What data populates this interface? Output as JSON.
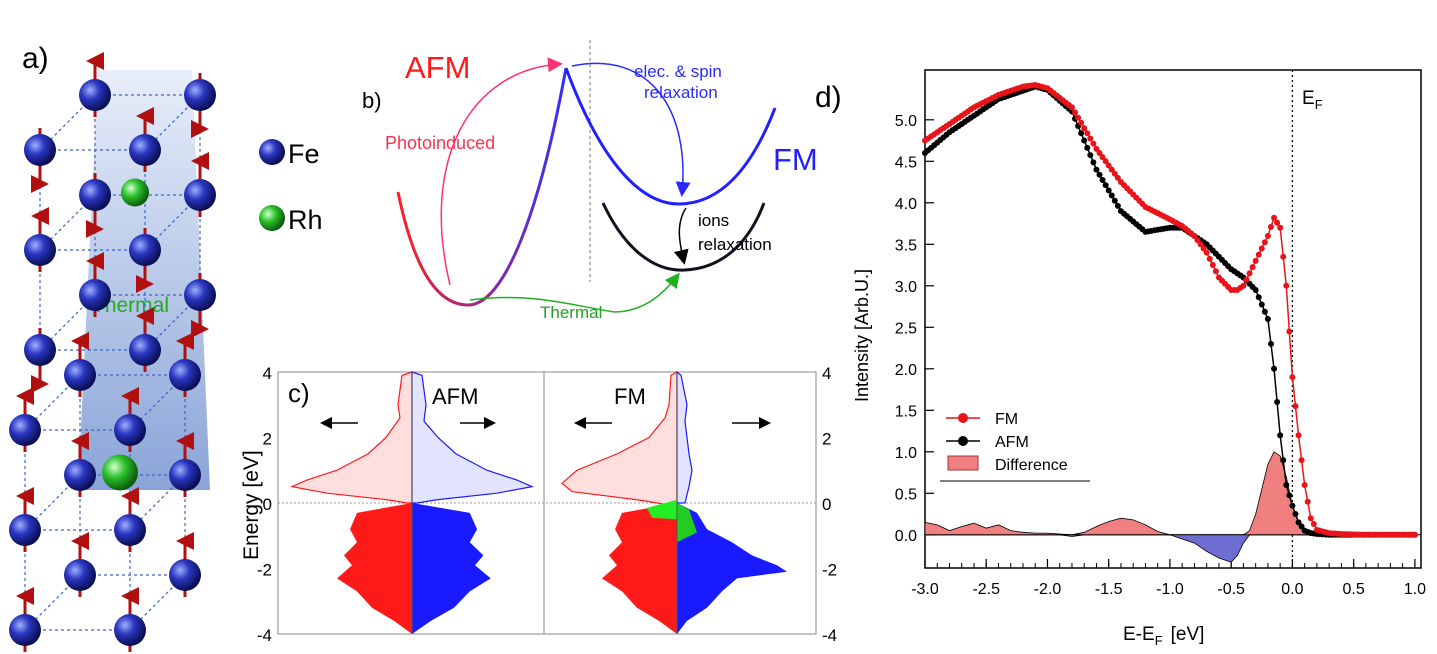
{
  "panel_labels": {
    "a": "a)",
    "b": "b)",
    "c": "c)",
    "d": "d)"
  },
  "legend_a": {
    "fe": "Fe",
    "rh": "Rh",
    "fe_color": "#1f2aa8",
    "rh_color": "#22b322"
  },
  "panel_a": {
    "thermal_label": "Thermal"
  },
  "panel_b": {
    "afm": "AFM",
    "fm": "FM",
    "photoinduced": "Photoinduced",
    "relax_line1": "elec. & spin",
    "relax_line2": "relaxation",
    "ions_line1": "ions",
    "ions_line2": "relaxation",
    "thermal": "Thermal"
  },
  "panel_c": {
    "ylabel": "Energy [eV]",
    "afm": "AFM",
    "fm": "FM",
    "ticks_left": [
      "4",
      "2",
      "0",
      "-2",
      "-4"
    ],
    "ticks_right": [
      "4",
      "2",
      "0",
      "-2",
      "-4"
    ]
  },
  "colors": {
    "fm": "#e8141a",
    "afm": "#000000",
    "diff_pos": "#f08080",
    "diff_neg": "#6e6ed2",
    "spin_up": "#ff1a1a",
    "spin_down": "#1a1aff",
    "green": "#22cc22"
  },
  "chart_data": {
    "type": "line",
    "title": "",
    "xlabel": "E-E_F [eV]",
    "xlabel_main": "E-E",
    "xlabel_sub": "F",
    "xlabel_unit": "[eV]",
    "ylabel": "Intensity [Arb.U.]",
    "xlim": [
      -3.0,
      1.05
    ],
    "ylim": [
      -0.4,
      5.6
    ],
    "x_ticks": [
      "-3.0",
      "-2.5",
      "-2.0",
      "-1.5",
      "-1.0",
      "-0.5",
      "0.0",
      "0.5",
      "1.0"
    ],
    "y_ticks": [
      "0.0",
      "0.5",
      "1.0",
      "1.5",
      "2.0",
      "2.5",
      "3.0",
      "3.5",
      "4.0",
      "4.5",
      "5.0"
    ],
    "ef_label_main": "E",
    "ef_label_sub": "F",
    "legend": [
      "FM",
      "AFM",
      "Difference"
    ],
    "series": [
      {
        "name": "FM",
        "x": [
          -3.0,
          -2.8,
          -2.6,
          -2.4,
          -2.2,
          -2.1,
          -2.0,
          -1.8,
          -1.6,
          -1.4,
          -1.2,
          -1.0,
          -0.9,
          -0.8,
          -0.7,
          -0.6,
          -0.5,
          -0.45,
          -0.4,
          -0.3,
          -0.2,
          -0.15,
          -0.1,
          -0.05,
          0.0,
          0.05,
          0.1,
          0.15,
          0.2,
          0.3,
          0.4,
          0.6,
          0.8,
          1.0
        ],
        "y": [
          4.75,
          4.95,
          5.15,
          5.3,
          5.4,
          5.42,
          5.38,
          5.15,
          4.65,
          4.25,
          3.95,
          3.8,
          3.72,
          3.6,
          3.4,
          3.1,
          2.95,
          2.95,
          3.0,
          3.3,
          3.6,
          3.82,
          3.7,
          3.0,
          1.9,
          1.2,
          0.6,
          0.2,
          0.06,
          0.02,
          0.01,
          0.0,
          0.0,
          0.0
        ]
      },
      {
        "name": "AFM",
        "x": [
          -3.0,
          -2.8,
          -2.6,
          -2.4,
          -2.2,
          -2.1,
          -2.0,
          -1.8,
          -1.6,
          -1.4,
          -1.2,
          -1.0,
          -0.9,
          -0.8,
          -0.7,
          -0.6,
          -0.5,
          -0.4,
          -0.3,
          -0.2,
          -0.15,
          -0.1,
          -0.05,
          0.0,
          0.05,
          0.1,
          0.15,
          0.2,
          0.3,
          0.4,
          0.6,
          0.8,
          1.0
        ],
        "y": [
          4.6,
          4.85,
          5.05,
          5.25,
          5.35,
          5.4,
          5.36,
          5.1,
          4.4,
          3.9,
          3.65,
          3.7,
          3.7,
          3.6,
          3.5,
          3.35,
          3.2,
          3.1,
          2.95,
          2.6,
          2.0,
          1.2,
          0.6,
          0.35,
          0.15,
          0.05,
          0.02,
          0.01,
          0.0,
          0.0,
          0.0,
          0.0,
          0.0
        ]
      },
      {
        "name": "Difference",
        "x": [
          -3.0,
          -2.9,
          -2.8,
          -2.7,
          -2.6,
          -2.5,
          -2.4,
          -2.3,
          -2.2,
          -2.1,
          -2.0,
          -1.9,
          -1.8,
          -1.7,
          -1.6,
          -1.5,
          -1.4,
          -1.3,
          -1.2,
          -1.1,
          -1.0,
          -0.9,
          -0.8,
          -0.7,
          -0.6,
          -0.5,
          -0.45,
          -0.4,
          -0.35,
          -0.3,
          -0.25,
          -0.2,
          -0.15,
          -0.1,
          -0.05,
          0.0,
          0.05,
          0.1,
          0.15,
          0.2,
          0.3,
          0.5,
          1.0
        ],
        "y": [
          0.15,
          0.12,
          0.05,
          0.1,
          0.14,
          0.08,
          0.12,
          0.05,
          0.03,
          0.02,
          0.02,
          0.01,
          -0.02,
          0.03,
          0.1,
          0.16,
          0.2,
          0.18,
          0.12,
          0.04,
          0.0,
          -0.05,
          -0.1,
          -0.2,
          -0.28,
          -0.33,
          -0.25,
          -0.1,
          0.05,
          0.25,
          0.55,
          0.85,
          1.0,
          0.95,
          0.7,
          0.35,
          0.15,
          0.05,
          0.02,
          0.0,
          0.0,
          0.0,
          0.0
        ]
      }
    ]
  }
}
